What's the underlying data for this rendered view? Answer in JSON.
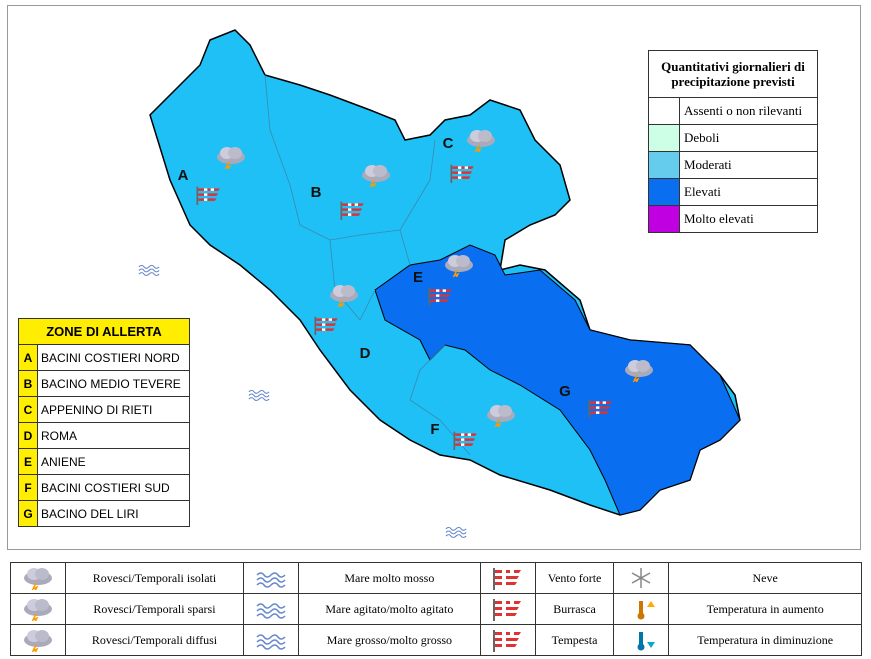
{
  "map": {
    "zone_labels": [
      "A",
      "B",
      "C",
      "D",
      "E",
      "F",
      "G"
    ]
  },
  "precipitation_legend": {
    "title": "Quantitativi giornalieri di precipitazione previsti",
    "items": [
      {
        "label": "Assenti o non rilevanti",
        "color": "#ffffff"
      },
      {
        "label": "Deboli",
        "color": "#ccffe6"
      },
      {
        "label": "Moderati",
        "color": "#66ccee"
      },
      {
        "label": "Elevati",
        "color": "#0a6ef0"
      },
      {
        "label": "Molto elevati",
        "color": "#c000e0"
      }
    ]
  },
  "alert_zones": {
    "title": "ZONE DI ALLERTA",
    "rows": [
      {
        "code": "A",
        "name": "BACINI COSTIERI NORD"
      },
      {
        "code": "B",
        "name": "BACINO MEDIO TEVERE"
      },
      {
        "code": "C",
        "name": "APPENINO DI RIETI"
      },
      {
        "code": "D",
        "name": "ROMA"
      },
      {
        "code": "E",
        "name": "ANIENE"
      },
      {
        "code": "F",
        "name": "BACINI COSTIERI SUD"
      },
      {
        "code": "G",
        "name": "BACINO DEL LIRI"
      }
    ]
  },
  "symbols_legend": {
    "rows": [
      [
        "Rovesci/Temporali isolati",
        "Mare molto mosso",
        "Vento forte",
        "Neve"
      ],
      [
        "Rovesci/Temporali sparsi",
        "Mare agitato/molto agitato",
        "Burrasca",
        "Temperatura in aumento"
      ],
      [
        "Rovesci/Temporali diffusi",
        "Mare grosso/molto grosso",
        "Tempesta",
        "Temperatura in diminuzione"
      ]
    ]
  }
}
